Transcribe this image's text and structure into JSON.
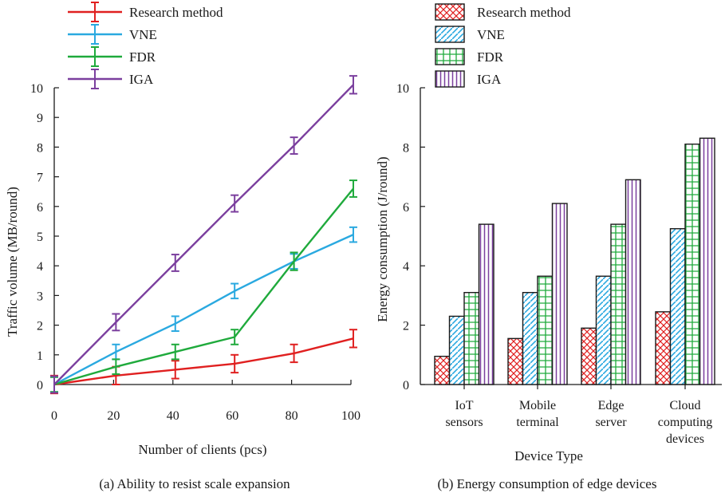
{
  "chart_data": [
    {
      "type": "line",
      "caption": "(a) Ability to resist scale expansion",
      "xlabel": "Number of clients (pcs)",
      "ylabel": "Traffic volume (MB/round)",
      "xlim": [
        0,
        100
      ],
      "ylim": [
        0,
        10
      ],
      "xticks": [
        "0",
        "20",
        "40",
        "60",
        "80",
        "100"
      ],
      "yticks": [
        "0",
        "1",
        "2",
        "3",
        "4",
        "5",
        "6",
        "7",
        "8",
        "9",
        "10"
      ],
      "series": [
        {
          "name": "Research method",
          "color": "#e02020",
          "x": [
            0,
            20,
            40,
            60,
            80,
            100
          ],
          "y": [
            0,
            0.3,
            0.5,
            0.7,
            1.05,
            1.55
          ],
          "err": [
            0.3,
            0.3,
            0.3,
            0.3,
            0.3,
            0.3
          ]
        },
        {
          "name": "VNE",
          "color": "#2aa9e0",
          "x": [
            0,
            20,
            40,
            60,
            80,
            100
          ],
          "y": [
            0,
            1.1,
            2.05,
            3.15,
            4.15,
            5.05
          ],
          "err": [
            0.25,
            0.25,
            0.25,
            0.25,
            0.25,
            0.25
          ]
        },
        {
          "name": "FDR",
          "color": "#1faa3c",
          "x": [
            0,
            20,
            40,
            60,
            80,
            100
          ],
          "y": [
            0,
            0.6,
            1.1,
            1.6,
            4.15,
            6.6
          ],
          "err": [
            0.25,
            0.25,
            0.25,
            0.25,
            0.3,
            0.28
          ]
        },
        {
          "name": "IGA",
          "color": "#7b3f9e",
          "x": [
            0,
            20,
            40,
            60,
            80,
            100
          ],
          "y": [
            0,
            2.1,
            4.1,
            6.1,
            8.05,
            10.1
          ],
          "err": [
            0.28,
            0.28,
            0.28,
            0.28,
            0.28,
            0.3
          ]
        }
      ]
    },
    {
      "type": "bar",
      "caption": "(b) Energy consumption of edge devices",
      "xlabel": "Device Type",
      "ylabel": "Energy consumption (J/round)",
      "ylim": [
        0,
        10
      ],
      "yticks": [
        "0",
        "2",
        "4",
        "6",
        "8",
        "10"
      ],
      "categories": [
        [
          "IoT",
          "sensors"
        ],
        [
          "Mobile",
          "terminal"
        ],
        [
          "Edge",
          "server"
        ],
        [
          "Cloud",
          "computing",
          "devices"
        ]
      ],
      "series": [
        {
          "name": "Research method",
          "color": "#e02020",
          "pattern": "crosshatch",
          "values": [
            0.95,
            1.55,
            1.9,
            2.45
          ]
        },
        {
          "name": "VNE",
          "color": "#2aa9e0",
          "pattern": "diagonal",
          "values": [
            2.3,
            3.1,
            3.65,
            5.25
          ]
        },
        {
          "name": "FDR",
          "color": "#1faa3c",
          "pattern": "grid",
          "values": [
            3.1,
            3.65,
            5.4,
            8.1
          ]
        },
        {
          "name": "IGA",
          "color": "#7b3f9e",
          "pattern": "vertical",
          "values": [
            5.4,
            6.1,
            6.9,
            8.3
          ]
        }
      ]
    }
  ]
}
